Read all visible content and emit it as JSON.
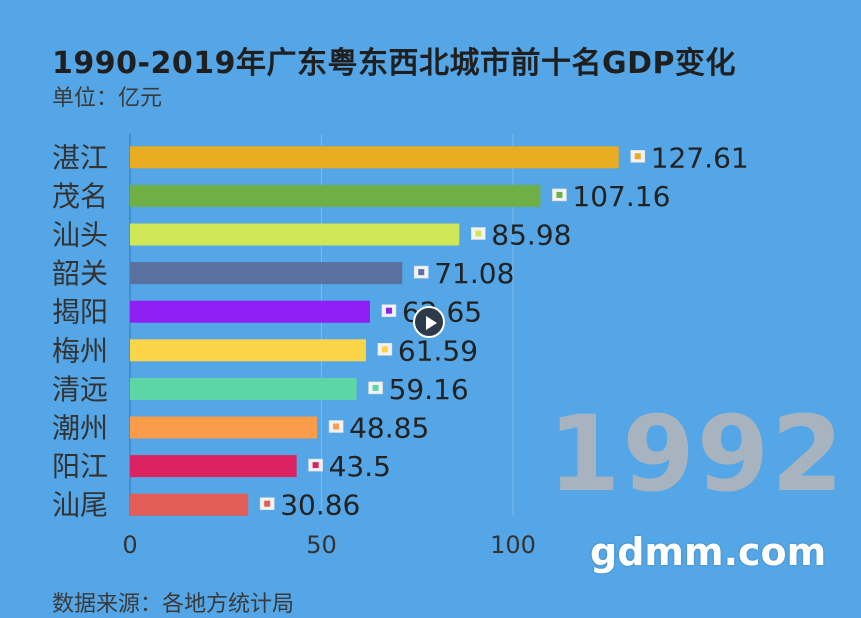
{
  "title": "1990-2019年广东粤东西北城市前十名GDP变化",
  "unit": "单位：亿元",
  "source": "数据来源：各地方统计局",
  "year": "1992",
  "watermark": "gdmm.com",
  "chart_data": {
    "type": "bar",
    "orientation": "horizontal",
    "categories": [
      "湛江",
      "茂名",
      "汕头",
      "韶关",
      "揭阳",
      "梅州",
      "清远",
      "潮州",
      "阳江",
      "汕尾"
    ],
    "values": [
      127.61,
      107.16,
      85.98,
      71.08,
      62.65,
      61.59,
      59.16,
      48.85,
      43.5,
      30.86
    ],
    "labels": [
      "127.61",
      "107.16",
      "85.98",
      "71.08",
      "62.65",
      "61.59",
      "59.16",
      "48.85",
      "43.5",
      "30.86"
    ],
    "colors": [
      "#e8ac22",
      "#6fb046",
      "#cfe756",
      "#5a71a0",
      "#8f1ff2",
      "#fbd547",
      "#5dd6a6",
      "#fb9c4a",
      "#da2360",
      "#e25d55"
    ],
    "xticks": [
      0,
      50,
      100
    ],
    "xlim": [
      0,
      130
    ],
    "grid": true
  }
}
